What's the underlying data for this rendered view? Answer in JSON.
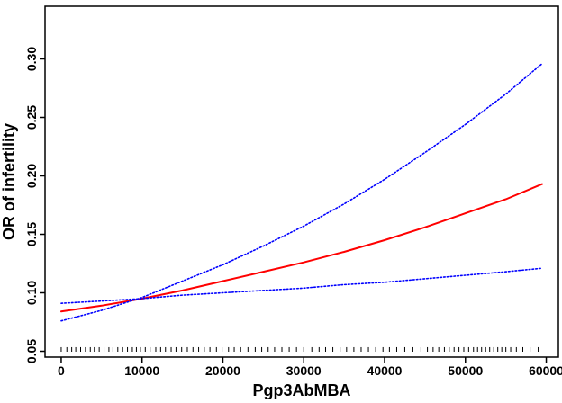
{
  "chart_data": {
    "type": "line",
    "xlabel": "Pgp3AbMBA",
    "ylabel": "OR of infertility",
    "xlim": [
      -2000,
      61500
    ],
    "ylim": [
      0.045,
      0.345
    ],
    "x_ticks": [
      0,
      10000,
      20000,
      30000,
      40000,
      50000,
      60000
    ],
    "x_tick_labels": [
      "0",
      "10000",
      "20000",
      "30000",
      "40000",
      "50000",
      "60000"
    ],
    "y_ticks": [
      0.05,
      0.1,
      0.15,
      0.2,
      0.25,
      0.3
    ],
    "y_tick_labels": [
      "0.05",
      "0.10",
      "0.15",
      "0.20",
      "0.25",
      "0.30"
    ],
    "grid": false,
    "legend": "none",
    "series": [
      {
        "role": "estimate",
        "color": "#ff0000",
        "style": "solid",
        "x": [
          0,
          5000,
          10000,
          15000,
          20000,
          25000,
          30000,
          35000,
          40000,
          45000,
          50000,
          55000,
          59500
        ],
        "y": [
          0.084,
          0.089,
          0.095,
          0.102,
          0.11,
          0.118,
          0.126,
          0.135,
          0.145,
          0.156,
          0.168,
          0.18,
          0.193
        ]
      },
      {
        "role": "upper-ci",
        "color": "#0000ff",
        "style": "dotted",
        "x": [
          0,
          5000,
          10000,
          15000,
          20000,
          25000,
          30000,
          35000,
          40000,
          45000,
          50000,
          55000,
          59500
        ],
        "y": [
          0.076,
          0.085,
          0.096,
          0.11,
          0.124,
          0.14,
          0.157,
          0.176,
          0.197,
          0.22,
          0.244,
          0.27,
          0.296
        ]
      },
      {
        "role": "lower-ci",
        "color": "#0000ff",
        "style": "dotted",
        "x": [
          0,
          5000,
          10000,
          15000,
          20000,
          25000,
          30000,
          35000,
          40000,
          45000,
          50000,
          55000,
          59500
        ],
        "y": [
          0.091,
          0.093,
          0.095,
          0.098,
          0.1,
          0.102,
          0.104,
          0.107,
          0.109,
          0.112,
          0.115,
          0.118,
          0.121
        ]
      }
    ],
    "rug": {
      "color": "#000000",
      "x": [
        0,
        700,
        1300,
        1800,
        2400,
        3000,
        3600,
        4100,
        4700,
        5300,
        5900,
        6400,
        7000,
        7600,
        8200,
        8800,
        9300,
        9800,
        10400,
        11000,
        11700,
        12300,
        12900,
        13600,
        14200,
        14900,
        15600,
        16300,
        17000,
        17700,
        18400,
        19200,
        19900,
        20700,
        21400,
        22200,
        23100,
        24000,
        24800,
        25600,
        26400,
        27300,
        28200,
        29100,
        30000,
        31000,
        31900,
        32700,
        33600,
        34500,
        35300,
        36200,
        37100,
        38000,
        38900,
        39800,
        40600,
        41500,
        42500,
        43500,
        44500,
        45300,
        46000,
        46700,
        47400,
        48000,
        48600,
        49200,
        49800,
        50400,
        51000,
        51500,
        52000,
        52500,
        53000,
        53500,
        54000,
        54500,
        55000,
        55600,
        56300,
        57100,
        58000,
        59000
      ]
    }
  }
}
